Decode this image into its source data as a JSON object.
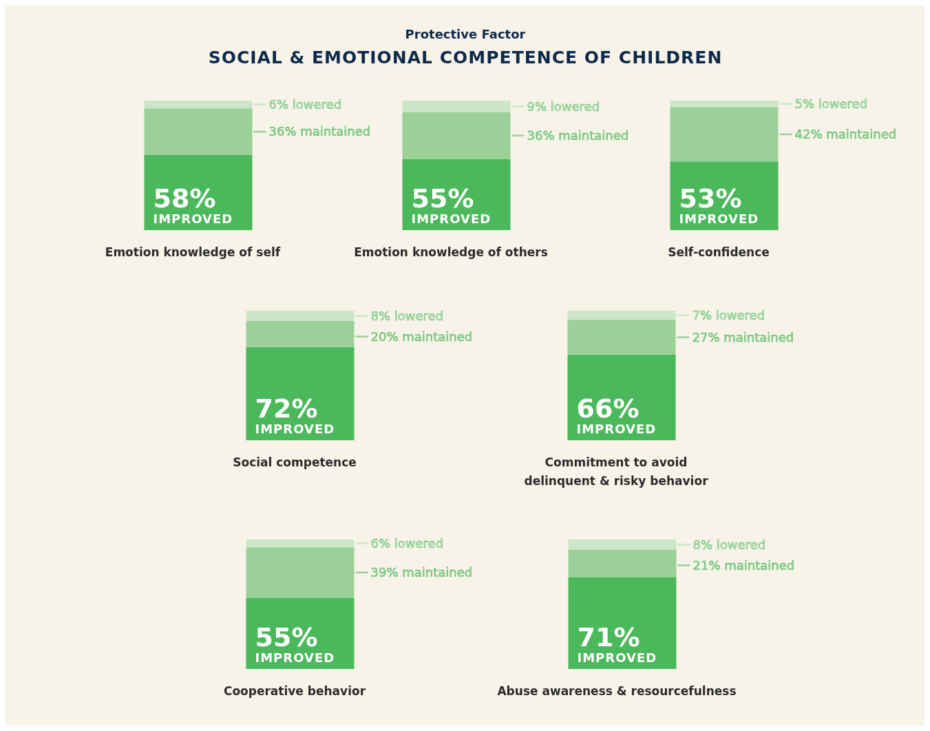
{
  "chart_data": [
    {
      "type": "bar",
      "subtitle": "Protective Factor",
      "title": "SOCIAL & EMOTIONAL COMPETENCE OF CHILDREN",
      "stacked": true,
      "ylim": [
        0,
        100
      ],
      "categories": [
        "Emotion knowledge of self",
        "Emotion knowledge of others",
        "Self-confidence"
      ],
      "series": [
        {
          "name": "IMPROVED",
          "color": "#4cb85c",
          "values": [
            58,
            55,
            53
          ],
          "value_labels": [
            "58%",
            "55%",
            "53%"
          ]
        },
        {
          "name": "maintained",
          "color": "#9bd198",
          "values": [
            36,
            36,
            42
          ],
          "value_labels": [
            "36%",
            "36%",
            "42%"
          ]
        },
        {
          "name": "lowered",
          "color": "#cce6c8",
          "values": [
            6,
            9,
            5
          ],
          "value_labels": [
            "6%",
            "9%",
            "5%"
          ]
        }
      ]
    },
    {
      "type": "bar",
      "stacked": true,
      "ylim": [
        0,
        100
      ],
      "categories": [
        "Social competence",
        "Commitment to avoid delinquent & risky behavior"
      ],
      "series": [
        {
          "name": "IMPROVED",
          "color": "#4cb85c",
          "values": [
            72,
            66
          ],
          "value_labels": [
            "72%",
            "66%"
          ]
        },
        {
          "name": "maintained",
          "color": "#9bd198",
          "values": [
            20,
            27
          ],
          "value_labels": [
            "20%",
            "27%"
          ]
        },
        {
          "name": "lowered",
          "color": "#cce6c8",
          "values": [
            8,
            7
          ],
          "value_labels": [
            "8%",
            "7%"
          ]
        }
      ]
    },
    {
      "type": "bar",
      "stacked": true,
      "ylim": [
        0,
        100
      ],
      "categories": [
        "Cooperative behavior",
        "Abuse awareness & resourcefulness"
      ],
      "series": [
        {
          "name": "IMPROVED",
          "color": "#4cb85c",
          "values": [
            55,
            71
          ],
          "value_labels": [
            "55%",
            "71%"
          ]
        },
        {
          "name": "maintained",
          "color": "#9bd198",
          "values": [
            39,
            21
          ],
          "value_labels": [
            "39%",
            "21%"
          ]
        },
        {
          "name": "lowered",
          "color": "#cce6c8",
          "values": [
            6,
            8
          ],
          "value_labels": [
            "6%",
            "8%"
          ]
        }
      ]
    }
  ]
}
